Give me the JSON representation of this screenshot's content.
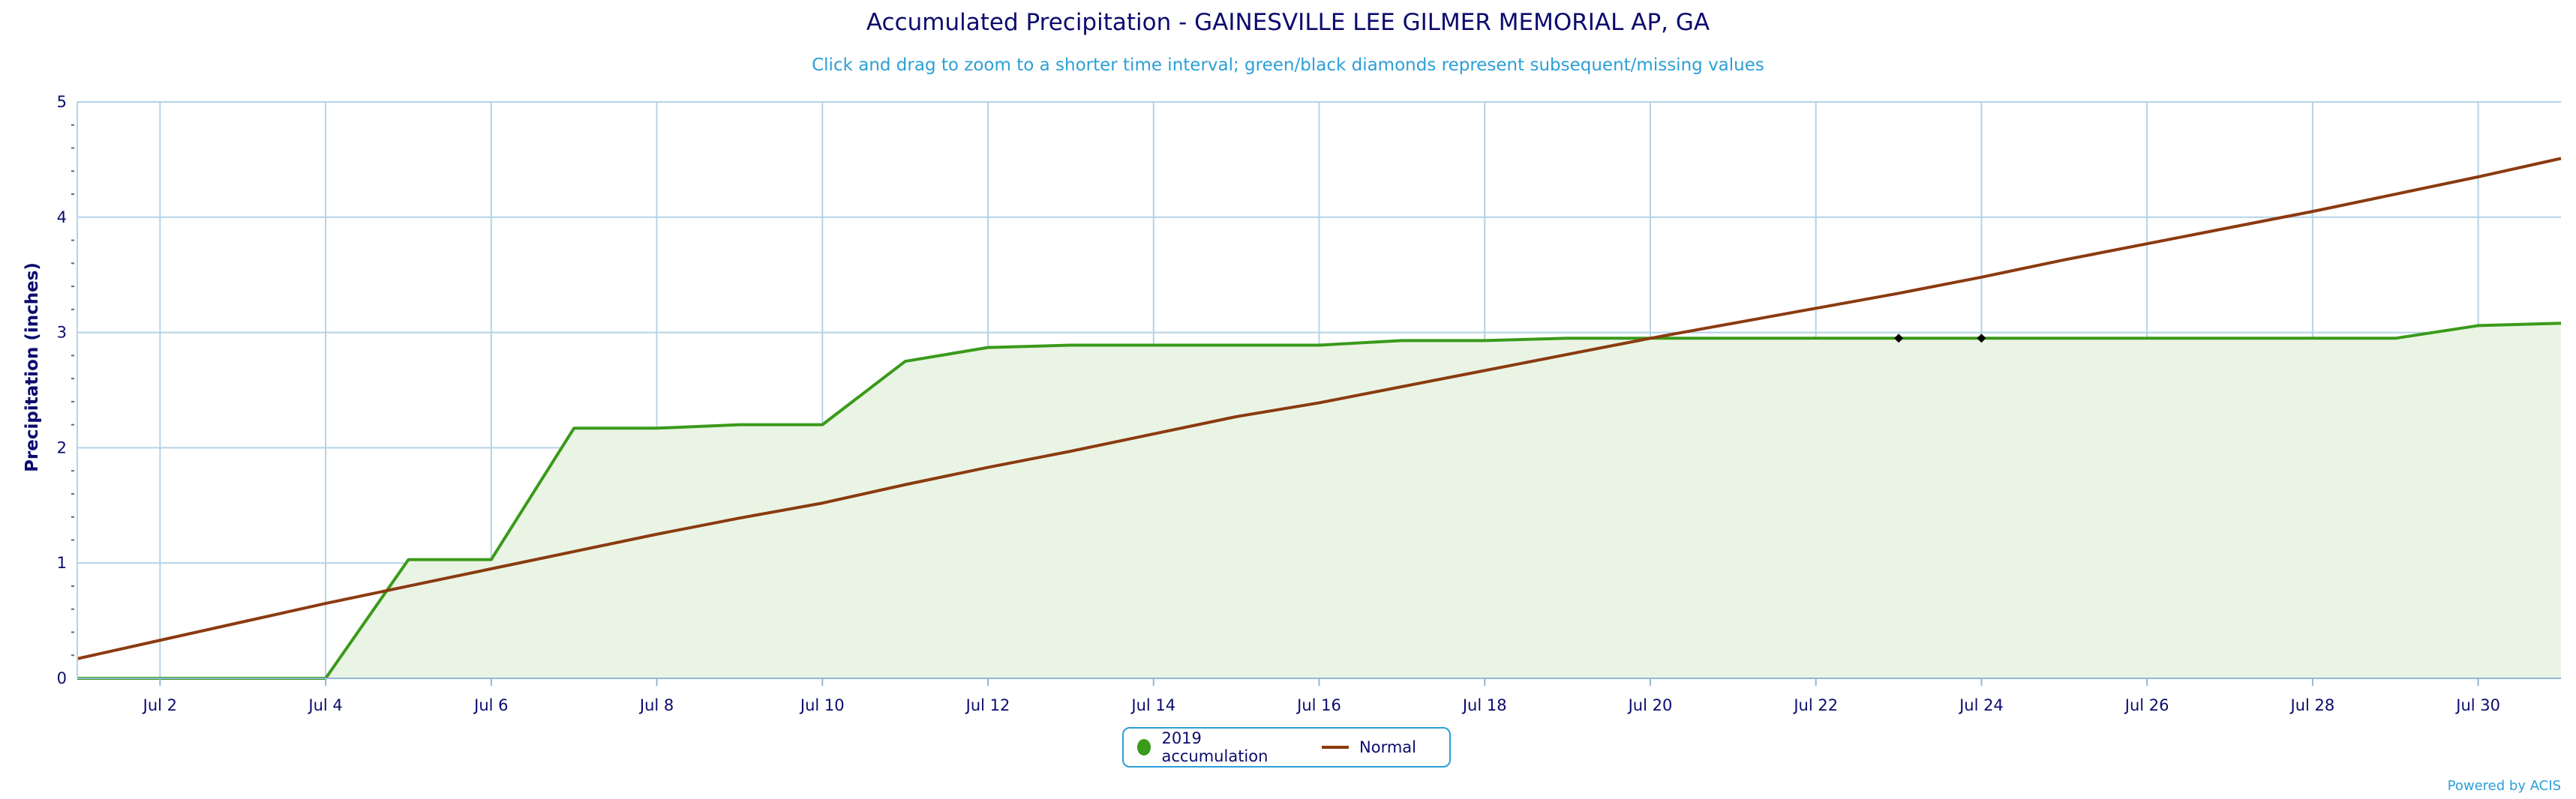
{
  "chart_data": {
    "type": "area",
    "title": "Accumulated Precipitation - GAINESVILLE LEE GILMER MEMORIAL AP, GA",
    "subtitle": "Click and drag to zoom to a shorter time interval; green/black diamonds represent subsequent/missing values",
    "xlabel": "",
    "ylabel": "Precipitation (inches)",
    "ylim": [
      0,
      5
    ],
    "y_ticks": [
      "0",
      "1",
      "2",
      "3",
      "4",
      "5"
    ],
    "x_range": [
      "2019-07-01",
      "2019-07-31"
    ],
    "x_ticks": [
      "Jul 2",
      "Jul 4",
      "Jul 6",
      "Jul 8",
      "Jul 10",
      "Jul 12",
      "Jul 14",
      "Jul 16",
      "Jul 18",
      "Jul 20",
      "Jul 22",
      "Jul 24",
      "Jul 26",
      "Jul 28",
      "Jul 30"
    ],
    "grid": true,
    "legend_position": "bottom-center",
    "series": [
      {
        "name": "2019 accumulation",
        "style": "area",
        "color": "#3a9a1a",
        "fill": "#eaf4e4",
        "x": [
          "2019-07-01",
          "2019-07-02",
          "2019-07-03",
          "2019-07-04",
          "2019-07-05",
          "2019-07-06",
          "2019-07-07",
          "2019-07-08",
          "2019-07-09",
          "2019-07-10",
          "2019-07-11",
          "2019-07-12",
          "2019-07-13",
          "2019-07-14",
          "2019-07-15",
          "2019-07-16",
          "2019-07-17",
          "2019-07-18",
          "2019-07-19",
          "2019-07-20",
          "2019-07-21",
          "2019-07-22",
          "2019-07-23",
          "2019-07-24",
          "2019-07-25",
          "2019-07-26",
          "2019-07-27",
          "2019-07-28",
          "2019-07-29",
          "2019-07-30",
          "2019-07-31"
        ],
        "values": [
          0,
          0,
          0,
          0,
          1.03,
          1.03,
          2.17,
          2.17,
          2.2,
          2.2,
          2.75,
          2.87,
          2.89,
          2.89,
          2.89,
          2.89,
          2.93,
          2.93,
          2.95,
          2.95,
          2.95,
          2.95,
          2.95,
          2.95,
          2.95,
          2.95,
          2.95,
          2.95,
          2.95,
          3.06,
          3.08
        ]
      },
      {
        "name": "Normal",
        "style": "line",
        "color": "#8b3a10",
        "x": [
          "2019-07-01",
          "2019-07-02",
          "2019-07-03",
          "2019-07-04",
          "2019-07-05",
          "2019-07-06",
          "2019-07-07",
          "2019-07-08",
          "2019-07-09",
          "2019-07-10",
          "2019-07-11",
          "2019-07-12",
          "2019-07-13",
          "2019-07-14",
          "2019-07-15",
          "2019-07-16",
          "2019-07-17",
          "2019-07-18",
          "2019-07-19",
          "2019-07-20",
          "2019-07-21",
          "2019-07-22",
          "2019-07-23",
          "2019-07-24",
          "2019-07-25",
          "2019-07-26",
          "2019-07-27",
          "2019-07-28",
          "2019-07-29",
          "2019-07-30",
          "2019-07-31"
        ],
        "values": [
          0.17,
          0.33,
          0.49,
          0.65,
          0.8,
          0.95,
          1.1,
          1.25,
          1.39,
          1.52,
          1.68,
          1.83,
          1.97,
          2.12,
          2.27,
          2.39,
          2.53,
          2.67,
          2.81,
          2.95,
          3.08,
          3.21,
          3.34,
          3.48,
          3.63,
          3.77,
          3.91,
          4.05,
          4.2,
          4.35,
          4.51
        ]
      }
    ],
    "missing_markers": {
      "color": "#000000",
      "x": [
        "2019-07-23",
        "2019-07-24"
      ],
      "values": [
        2.95,
        2.95
      ]
    }
  },
  "legend": {
    "items": [
      {
        "label": "2019 accumulation",
        "color": "#3a9a1a"
      },
      {
        "label": "Normal",
        "color": "#8b3a10"
      }
    ]
  },
  "credits": "Powered by ACIS"
}
